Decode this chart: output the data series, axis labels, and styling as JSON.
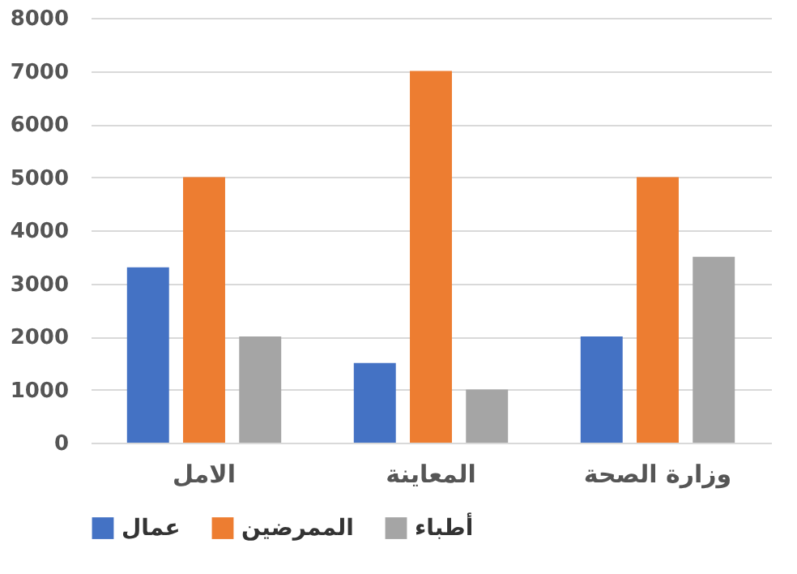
{
  "chart_data": {
    "type": "bar",
    "categories": [
      "الامل",
      "المعاينة",
      "وزارة الصحة"
    ],
    "series": [
      {
        "name": "عمال",
        "color": "#4472c4",
        "values": [
          3300,
          1500,
          2000
        ]
      },
      {
        "name": "الممرضين",
        "color": "#ed7d31",
        "values": [
          5000,
          7000,
          5000
        ]
      },
      {
        "name": "أطباء",
        "color": "#a5a5a5",
        "values": [
          2000,
          1000,
          3500
        ]
      }
    ],
    "ylim": [
      0,
      8000
    ],
    "yticks": [
      0,
      1000,
      2000,
      3000,
      4000,
      5000,
      6000,
      7000,
      8000
    ],
    "grid": "y",
    "legend": "bottom"
  }
}
